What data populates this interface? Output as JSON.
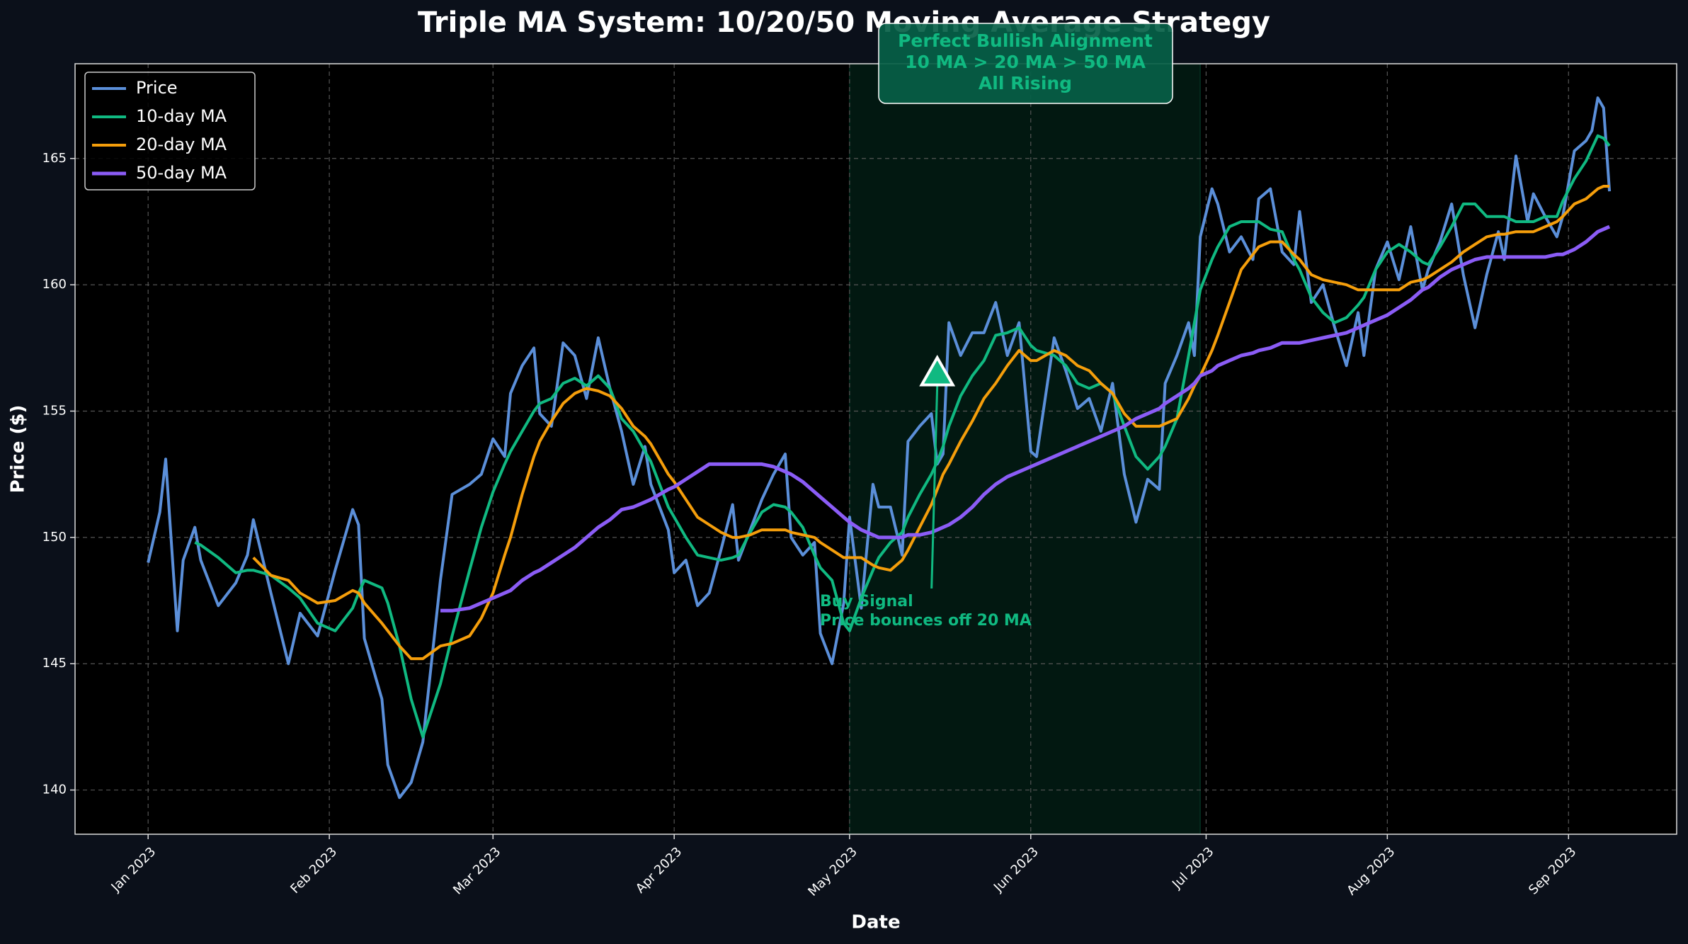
{
  "chart_data": {
    "type": "line",
    "title": "Triple MA System: 10/20/50 Moving Average Strategy",
    "xlabel": "Date",
    "ylabel": "Price ($)",
    "x": [
      0,
      2,
      3,
      5,
      6,
      8,
      9,
      12,
      15,
      17,
      18,
      21,
      24,
      26,
      29,
      32,
      35,
      36,
      37,
      40,
      41,
      43,
      45,
      47,
      50,
      52,
      55,
      57,
      59,
      61,
      62,
      64,
      66,
      67,
      69,
      71,
      73,
      75,
      77,
      79,
      81,
      83,
      85,
      86,
      89,
      90,
      92,
      94,
      96,
      98,
      100,
      101,
      103,
      105,
      107,
      109,
      110,
      112,
      114,
      115,
      117,
      119,
      120,
      122,
      124,
      125,
      127,
      129,
      130,
      132,
      134,
      135,
      136,
      137,
      139,
      141,
      143,
      145,
      147,
      149,
      151,
      152,
      155,
      157,
      159,
      161,
      163,
      165,
      167,
      169,
      171,
      173,
      174,
      176,
      178,
      179,
      180,
      182,
      183,
      185,
      187,
      189,
      190,
      192,
      194,
      196,
      197,
      199,
      201,
      203,
      205,
      207,
      208,
      210,
      212,
      214,
      216,
      218,
      219,
      221,
      223,
      225,
      227,
      229,
      231,
      232,
      234,
      236,
      237,
      239,
      241,
      242,
      244,
      246,
      247,
      248,
      249,
      250
    ],
    "series": [
      {
        "name": "Price",
        "color": "#5b8fd9",
        "width": 4,
        "values": [
          149.0,
          151.0,
          153.1,
          146.3,
          149.1,
          150.4,
          149.1,
          147.3,
          148.2,
          149.3,
          150.7,
          147.8,
          145.0,
          147.0,
          146.1,
          148.7,
          151.1,
          150.5,
          146.0,
          143.6,
          141.0,
          139.7,
          140.3,
          141.9,
          148.3,
          151.7,
          152.1,
          152.5,
          153.9,
          153.2,
          155.7,
          156.8,
          157.5,
          154.9,
          154.4,
          157.7,
          157.2,
          155.5,
          157.9,
          155.9,
          154.2,
          152.1,
          153.6,
          152.1,
          150.3,
          148.6,
          149.1,
          147.3,
          147.8,
          149.5,
          151.3,
          149.1,
          150.3,
          151.5,
          152.5,
          153.3,
          150.0,
          149.3,
          149.8,
          146.2,
          145.0,
          147.4,
          150.8,
          147.2,
          152.1,
          151.2,
          151.2,
          149.3,
          153.8,
          154.4,
          154.9,
          152.9,
          153.3,
          158.5,
          157.2,
          158.1,
          158.1,
          159.3,
          157.2,
          158.5,
          153.4,
          153.2,
          157.9,
          156.6,
          155.1,
          155.5,
          154.2,
          156.1,
          152.5,
          150.6,
          152.3,
          151.9,
          156.1,
          157.2,
          158.5,
          157.2,
          161.9,
          163.8,
          163.2,
          161.3,
          161.9,
          161.0,
          163.4,
          163.8,
          161.3,
          160.8,
          162.9,
          159.3,
          160.0,
          158.3,
          156.8,
          158.9,
          157.2,
          160.6,
          161.7,
          160.2,
          162.3,
          159.8,
          160.6,
          161.7,
          163.2,
          160.4,
          158.3,
          160.4,
          162.1,
          161.0,
          165.1,
          162.5,
          163.6,
          162.7,
          161.9,
          162.7,
          165.3,
          165.7,
          166.1,
          167.4,
          167.0,
          163.7
        ]
      },
      {
        "name": "10-day MA",
        "color": "#10b981",
        "width": 4,
        "values": [
          null,
          null,
          null,
          null,
          null,
          149.8,
          149.7,
          149.2,
          148.6,
          148.7,
          148.7,
          148.5,
          148.0,
          147.6,
          146.6,
          146.3,
          147.2,
          147.8,
          148.3,
          148.0,
          147.4,
          145.7,
          143.6,
          142.1,
          144.2,
          146.1,
          148.7,
          150.4,
          151.8,
          152.9,
          153.4,
          154.2,
          155.0,
          155.3,
          155.5,
          156.1,
          156.3,
          156.0,
          156.4,
          155.9,
          154.7,
          154.2,
          153.4,
          153.0,
          151.2,
          150.8,
          150.0,
          149.3,
          149.2,
          149.1,
          149.2,
          149.3,
          150.2,
          151.0,
          151.3,
          151.2,
          151.0,
          150.4,
          149.3,
          148.8,
          148.3,
          146.6,
          146.3,
          147.6,
          148.7,
          149.2,
          149.8,
          150.2,
          150.8,
          151.7,
          152.5,
          153.0,
          153.6,
          154.4,
          155.6,
          156.4,
          157.0,
          158.0,
          158.1,
          158.3,
          157.6,
          157.4,
          157.2,
          156.8,
          156.1,
          155.9,
          156.1,
          155.7,
          154.4,
          153.2,
          152.7,
          153.2,
          153.6,
          154.7,
          157.2,
          158.5,
          159.8,
          161.0,
          161.5,
          162.3,
          162.5,
          162.5,
          162.5,
          162.2,
          162.1,
          161.0,
          160.6,
          159.5,
          158.9,
          158.5,
          158.7,
          159.2,
          159.5,
          160.6,
          161.3,
          161.6,
          161.3,
          160.9,
          160.8,
          161.5,
          162.3,
          163.2,
          163.2,
          162.7,
          162.7,
          162.7,
          162.5,
          162.5,
          162.5,
          162.7,
          162.7,
          163.3,
          164.2,
          164.9,
          165.4,
          165.9,
          165.8,
          165.5
        ]
      },
      {
        "name": "20-day MA",
        "color": "#f59e0b",
        "width": 4,
        "values": [
          null,
          null,
          null,
          null,
          null,
          null,
          null,
          null,
          null,
          null,
          149.2,
          148.5,
          148.3,
          147.8,
          147.4,
          147.5,
          147.9,
          147.8,
          147.4,
          146.6,
          146.3,
          145.7,
          145.2,
          145.2,
          145.7,
          145.8,
          146.1,
          146.8,
          147.8,
          149.3,
          150.0,
          151.7,
          153.2,
          153.8,
          154.6,
          155.3,
          155.7,
          155.9,
          155.8,
          155.6,
          155.1,
          154.4,
          154.0,
          153.7,
          152.5,
          152.2,
          151.5,
          150.8,
          150.5,
          150.2,
          150.0,
          150.0,
          150.1,
          150.3,
          150.3,
          150.3,
          150.2,
          150.1,
          150.0,
          149.8,
          149.5,
          149.2,
          149.2,
          149.2,
          148.9,
          148.8,
          148.7,
          149.1,
          149.5,
          150.4,
          151.3,
          151.9,
          152.5,
          152.9,
          153.8,
          154.6,
          155.5,
          156.1,
          156.8,
          157.4,
          157.0,
          157.0,
          157.4,
          157.2,
          156.8,
          156.6,
          156.1,
          155.7,
          154.9,
          154.4,
          154.4,
          154.4,
          154.5,
          154.7,
          155.5,
          156.0,
          156.4,
          157.4,
          158.0,
          159.3,
          160.6,
          161.2,
          161.5,
          161.7,
          161.7,
          161.2,
          161.0,
          160.4,
          160.2,
          160.1,
          160.0,
          159.8,
          159.8,
          159.8,
          159.8,
          159.8,
          160.1,
          160.2,
          160.3,
          160.6,
          160.9,
          161.3,
          161.6,
          161.9,
          162.0,
          162.0,
          162.1,
          162.1,
          162.1,
          162.3,
          162.5,
          162.7,
          163.2,
          163.4,
          163.6,
          163.8,
          163.9,
          163.9
        ]
      },
      {
        "name": "50-day MA",
        "color": "#8b5cf6",
        "width": 5,
        "values": [
          null,
          null,
          null,
          null,
          null,
          null,
          null,
          null,
          null,
          null,
          null,
          null,
          null,
          null,
          null,
          null,
          null,
          null,
          null,
          null,
          null,
          null,
          null,
          null,
          147.1,
          147.1,
          147.2,
          147.4,
          147.6,
          147.8,
          147.9,
          148.3,
          148.6,
          148.7,
          149.0,
          149.3,
          149.6,
          150.0,
          150.4,
          150.7,
          151.1,
          151.2,
          151.4,
          151.5,
          151.9,
          152.0,
          152.3,
          152.6,
          152.9,
          152.9,
          152.9,
          152.9,
          152.9,
          152.9,
          152.8,
          152.6,
          152.5,
          152.2,
          151.8,
          151.6,
          151.2,
          150.8,
          150.6,
          150.3,
          150.1,
          150.0,
          150.0,
          150.0,
          150.1,
          150.1,
          150.2,
          150.3,
          150.4,
          150.5,
          150.8,
          151.2,
          151.7,
          152.1,
          152.4,
          152.6,
          152.8,
          152.9,
          153.2,
          153.4,
          153.6,
          153.8,
          154.0,
          154.2,
          154.4,
          154.7,
          154.9,
          155.1,
          155.3,
          155.6,
          155.9,
          156.1,
          156.4,
          156.6,
          156.8,
          157.0,
          157.2,
          157.3,
          157.4,
          157.5,
          157.7,
          157.7,
          157.7,
          157.8,
          157.9,
          158.0,
          158.1,
          158.3,
          158.4,
          158.6,
          158.8,
          159.1,
          159.4,
          159.8,
          159.9,
          160.3,
          160.6,
          160.8,
          161.0,
          161.1,
          161.1,
          161.1,
          161.1,
          161.1,
          161.1,
          161.1,
          161.2,
          161.2,
          161.4,
          161.7,
          161.9,
          162.1,
          162.2,
          162.3
        ]
      }
    ],
    "xlim": [
      -12.5,
      261.5
    ],
    "ylim": [
      138.25,
      168.75
    ],
    "xticks": [
      {
        "value": 0,
        "label": "Jan 2023"
      },
      {
        "value": 31,
        "label": "Feb 2023"
      },
      {
        "value": 59,
        "label": "Mar 2023"
      },
      {
        "value": 90,
        "label": "Apr 2023"
      },
      {
        "value": 120,
        "label": "May 2023"
      },
      {
        "value": 151,
        "label": "Jun 2023"
      },
      {
        "value": 181,
        "label": "Jul 2023"
      },
      {
        "value": 212,
        "label": "Aug 2023"
      },
      {
        "value": 243,
        "label": "Sep 2023"
      }
    ],
    "yticks": [
      140,
      145,
      150,
      155,
      160,
      165
    ],
    "grid": true,
    "legend": "upper-left",
    "shaded_region": {
      "x": [
        120,
        180
      ],
      "color": "#10b981"
    },
    "buy_signal": {
      "x": 135,
      "value": 156.5,
      "color": "#10b981"
    },
    "annotations": [
      {
        "lines": [
          "Perfect Bullish Alignment",
          "10 MA > 20 MA > 50 MA",
          "All Rising"
        ]
      },
      {
        "lines": [
          "Buy Signal",
          "Price bounces off 20 MA"
        ]
      }
    ]
  }
}
